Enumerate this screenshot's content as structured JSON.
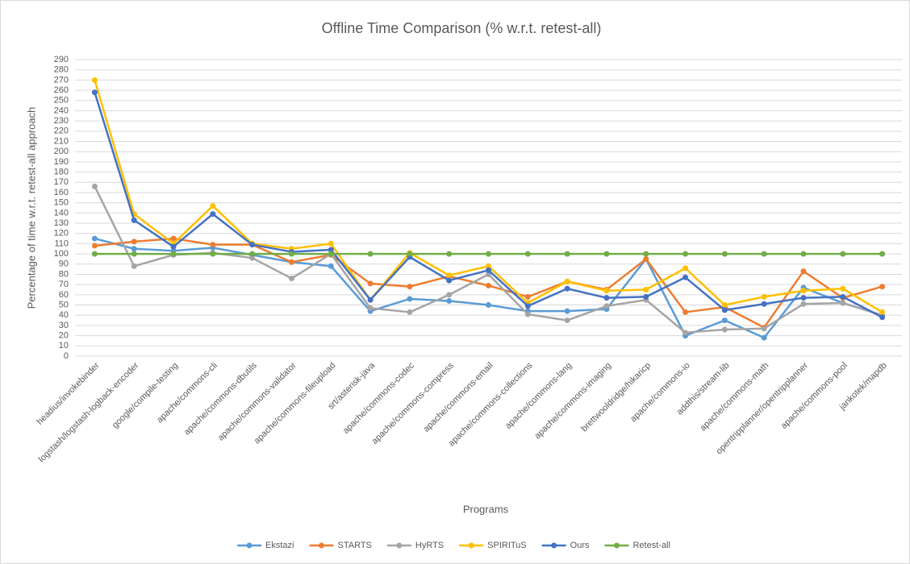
{
  "chart_data": {
    "type": "line",
    "title": "Offline Time Comparison (% w.r.t. retest-all)",
    "x_label": "Programs",
    "y_label": "Percentage  of time w.r.t. retest-all approach",
    "categories": [
      "headius/invokebinder",
      "logstash/logstash-logback-encoder",
      "google/compile-testing",
      "apache/commons-cli",
      "apache/commons-dbutils",
      "apache/commons-validator",
      "apache/commons-fileupload",
      "srt/asterisk-java",
      "apache/commons-codec",
      "apache/commons-compress",
      "apache/commons-email",
      "apache/commons-collections",
      "apache/commons-lang",
      "apache/commons-imaging",
      "brettwooldridge/hikaricp",
      "apache/commons-io",
      "addthis/stream-lib",
      "apache/commons-math",
      "opentripplanner/opentripplanner",
      "apache/commons-pool",
      "jankotek/mapdb"
    ],
    "series": [
      {
        "name": "Ekstazi",
        "color": "#5b9bd5",
        "values": [
          115,
          105,
          103,
          106,
          99,
          92,
          88,
          44,
          56,
          54,
          50,
          44,
          44,
          46,
          95,
          20,
          35,
          18,
          67,
          52,
          40
        ]
      },
      {
        "name": "STARTS",
        "color": "#ed7d31",
        "values": [
          108,
          112,
          115,
          109,
          109,
          92,
          99,
          71,
          68,
          78,
          69,
          58,
          73,
          65,
          95,
          43,
          48,
          28,
          83,
          57,
          68
        ]
      },
      {
        "name": "HyRTS",
        "color": "#a5a5a5",
        "values": [
          166,
          88,
          99,
          101,
          96,
          76,
          100,
          47,
          43,
          60,
          80,
          41,
          35,
          49,
          55,
          23,
          26,
          27,
          51,
          52,
          40
        ]
      },
      {
        "name": "SPIRITuS",
        "color": "#ffc000",
        "values": [
          270,
          139,
          110,
          147,
          110,
          105,
          110,
          55,
          101,
          79,
          88,
          52,
          73,
          64,
          65,
          86,
          50,
          58,
          64,
          66,
          43
        ]
      },
      {
        "name": "Ours",
        "color": "#4472c4",
        "values": [
          258,
          133,
          107,
          139,
          109,
          102,
          104,
          55,
          97,
          74,
          84,
          49,
          66,
          57,
          58,
          77,
          45,
          51,
          57,
          58,
          38
        ]
      },
      {
        "name": "Retest-all",
        "color": "#70ad47",
        "values": [
          100,
          100,
          100,
          100,
          100,
          100,
          100,
          100,
          100,
          100,
          100,
          100,
          100,
          100,
          100,
          100,
          100,
          100,
          100,
          100,
          100
        ]
      }
    ],
    "ylim": [
      0,
      290
    ],
    "yticks": [
      0,
      10,
      20,
      30,
      40,
      50,
      60,
      70,
      80,
      90,
      100,
      110,
      120,
      130,
      140,
      150,
      160,
      170,
      180,
      190,
      200,
      210,
      220,
      230,
      240,
      250,
      260,
      270,
      280,
      290
    ],
    "grid": true,
    "legend": "bottom"
  }
}
